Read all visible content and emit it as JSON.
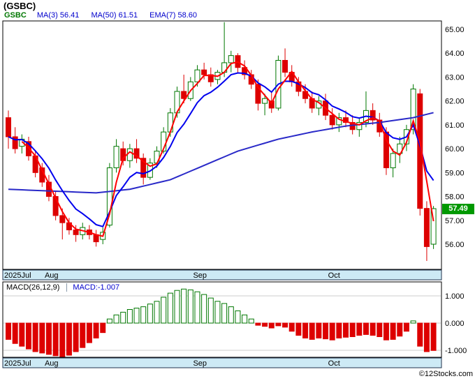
{
  "header": {
    "title": "(GSBC)",
    "legend": {
      "symbol": "GSBC",
      "items": [
        {
          "label": "MA(3)",
          "value": "56.41"
        },
        {
          "label": "MA(50)",
          "value": "61.51"
        },
        {
          "label": "EMA(7)",
          "value": "58.60"
        }
      ]
    }
  },
  "price_axis": {
    "last_price": "57.49"
  },
  "macd_legend": {
    "params": "MACD(26,12,9)",
    "value_label": "MACD:-1.007"
  },
  "footer": {
    "credit": "©12Stocks.com"
  },
  "colors": {
    "up": "#007700",
    "down": "#dd0000",
    "ma3": "#ff0000",
    "ema7": "#0000ee",
    "ma50": "#2929c8",
    "badge_bg": "#009900",
    "band_bg": "#cdeaf5",
    "grid": "#cccccc",
    "legend_blue": "#0000cc"
  },
  "chart_data": [
    {
      "type": "candlestick",
      "symbol": "GSBC",
      "title": "(GSBC)",
      "ylim": [
        54.95,
        65.35
      ],
      "yticks": [
        65,
        64,
        63,
        62,
        61,
        60,
        59,
        58,
        57,
        56
      ],
      "last_close": 57.49,
      "x_ticks": [
        {
          "label": "2025Jul",
          "i": 0
        },
        {
          "label": "Aug",
          "i": 6
        },
        {
          "label": "Sep",
          "i": 28
        },
        {
          "label": "Oct",
          "i": 48
        }
      ],
      "overlays": {
        "ma3": {
          "label": "MA(3)",
          "last": 56.41,
          "color": "#ff0000"
        },
        "ema7": {
          "label": "EMA(7)",
          "last": 58.6,
          "color": "#0000ee"
        },
        "ma50": {
          "label": "MA(50)",
          "last": 61.51,
          "color": "#2929c8",
          "points": [
            [
              0,
              58.3
            ],
            [
              7,
              58.22
            ],
            [
              13,
              58.15
            ],
            [
              18,
              58.3
            ],
            [
              24,
              58.7
            ],
            [
              29,
              59.3
            ],
            [
              34,
              59.9
            ],
            [
              40,
              60.4
            ],
            [
              45,
              60.7
            ],
            [
              50,
              60.95
            ],
            [
              55,
              61.1
            ],
            [
              60,
              61.3
            ],
            [
              63,
              61.51
            ]
          ]
        }
      },
      "ohlc": [
        [
          61.3,
          61.6,
          60.0,
          60.5
        ],
        [
          60.5,
          60.9,
          59.8,
          60.0
        ],
        [
          60.1,
          60.6,
          59.8,
          60.4
        ],
        [
          60.3,
          60.5,
          59.5,
          59.7
        ],
        [
          59.7,
          59.9,
          58.8,
          59.0
        ],
        [
          59.2,
          59.4,
          58.4,
          58.6
        ],
        [
          58.6,
          58.9,
          57.8,
          58.0
        ],
        [
          58.0,
          58.2,
          57.0,
          57.2
        ],
        [
          57.2,
          57.5,
          56.2,
          56.9
        ],
        [
          56.9,
          57.1,
          56.4,
          56.6
        ],
        [
          56.6,
          56.8,
          56.1,
          56.4
        ],
        [
          56.4,
          56.9,
          56.2,
          56.7
        ],
        [
          56.6,
          56.8,
          56.2,
          56.4
        ],
        [
          56.4,
          56.6,
          55.9,
          56.1
        ],
        [
          56.2,
          56.7,
          56.0,
          56.5
        ],
        [
          56.8,
          59.4,
          56.7,
          59.2
        ],
        [
          59.2,
          60.4,
          59.0,
          60.1
        ],
        [
          60.0,
          60.3,
          59.3,
          59.5
        ],
        [
          59.5,
          60.2,
          59.2,
          60.0
        ],
        [
          60.0,
          60.4,
          59.4,
          59.6
        ],
        [
          59.6,
          59.8,
          58.5,
          58.8
        ],
        [
          58.8,
          59.6,
          58.7,
          59.4
        ],
        [
          59.4,
          60.1,
          59.2,
          59.9
        ],
        [
          59.9,
          60.9,
          59.8,
          60.7
        ],
        [
          60.7,
          61.7,
          60.5,
          61.5
        ],
        [
          61.5,
          62.6,
          61.3,
          62.4
        ],
        [
          62.4,
          63.1,
          61.9,
          62.1
        ],
        [
          62.1,
          63.0,
          62.0,
          62.8
        ],
        [
          62.8,
          63.5,
          62.6,
          63.3
        ],
        [
          63.3,
          63.6,
          62.9,
          63.1
        ],
        [
          63.1,
          63.4,
          62.6,
          62.8
        ],
        [
          62.9,
          63.3,
          62.7,
          63.2
        ],
        [
          63.2,
          65.3,
          63.0,
          63.6
        ],
        [
          63.6,
          64.1,
          63.2,
          63.9
        ],
        [
          63.9,
          64.0,
          63.2,
          63.4
        ],
        [
          63.4,
          63.7,
          62.9,
          63.1
        ],
        [
          63.1,
          63.3,
          62.5,
          62.7
        ],
        [
          62.7,
          62.9,
          61.6,
          61.9
        ],
        [
          61.9,
          62.3,
          61.4,
          62.1
        ],
        [
          62.0,
          62.4,
          61.5,
          61.7
        ],
        [
          61.7,
          63.9,
          61.6,
          63.7
        ],
        [
          63.7,
          64.2,
          63.0,
          63.2
        ],
        [
          63.2,
          63.5,
          62.6,
          62.8
        ],
        [
          62.8,
          63.0,
          62.2,
          62.4
        ],
        [
          62.4,
          62.7,
          61.9,
          62.1
        ],
        [
          62.1,
          62.4,
          61.5,
          61.7
        ],
        [
          61.7,
          62.2,
          61.4,
          62.0
        ],
        [
          62.0,
          62.3,
          61.2,
          61.4
        ],
        [
          61.4,
          61.7,
          60.8,
          61.0
        ],
        [
          61.0,
          61.5,
          60.7,
          61.3
        ],
        [
          61.3,
          61.6,
          60.9,
          61.1
        ],
        [
          61.1,
          61.4,
          60.6,
          60.8
        ],
        [
          60.8,
          61.3,
          60.5,
          61.1
        ],
        [
          61.1,
          62.4,
          60.9,
          61.6
        ],
        [
          61.6,
          61.9,
          61.0,
          61.2
        ],
        [
          61.2,
          61.5,
          60.5,
          60.7
        ],
        [
          60.7,
          60.9,
          58.9,
          59.2
        ],
        [
          59.2,
          60.0,
          58.8,
          59.8
        ],
        [
          59.8,
          60.5,
          59.4,
          60.2
        ],
        [
          60.2,
          61.0,
          59.9,
          60.8
        ],
        [
          60.8,
          62.7,
          60.6,
          62.5
        ],
        [
          62.3,
          62.5,
          57.2,
          57.5
        ],
        [
          57.5,
          57.8,
          55.3,
          55.9
        ],
        [
          56.0,
          57.6,
          55.8,
          57.49
        ]
      ]
    },
    {
      "type": "bar",
      "title": "MACD(26,12,9)",
      "last": -1.007,
      "ylim": [
        -1.26,
        1.51
      ],
      "yticks": [
        1,
        0,
        -1
      ],
      "values": [
        -0.6,
        -0.75,
        -0.85,
        -0.95,
        -1.05,
        -1.1,
        -1.15,
        -1.2,
        -1.25,
        -1.18,
        -1.05,
        -0.9,
        -0.72,
        -0.55,
        -0.35,
        0.15,
        0.3,
        0.4,
        0.5,
        0.55,
        0.6,
        0.7,
        0.8,
        0.95,
        1.1,
        1.2,
        1.25,
        1.22,
        1.15,
        1.05,
        0.92,
        0.8,
        0.72,
        0.6,
        0.45,
        0.3,
        0.15,
        -0.08,
        -0.12,
        -0.18,
        -0.1,
        -0.15,
        -0.3,
        -0.45,
        -0.55,
        -0.6,
        -0.55,
        -0.58,
        -0.62,
        -0.55,
        -0.52,
        -0.5,
        -0.45,
        -0.42,
        -0.45,
        -0.5,
        -0.62,
        -0.6,
        -0.48,
        -0.3,
        0.08,
        -0.85,
        -1.05,
        -1.007
      ]
    }
  ]
}
